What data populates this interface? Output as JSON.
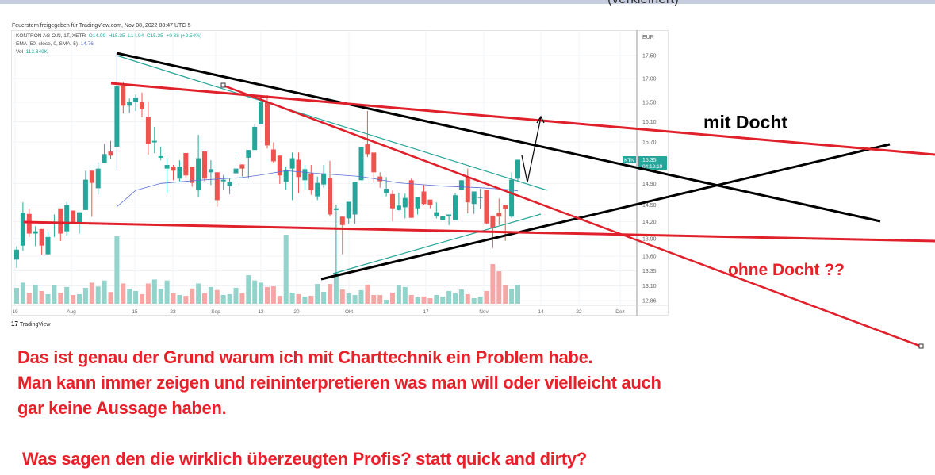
{
  "page": {
    "cutoff_caption": "(verkleinert)",
    "shared_line": "Feuerstern freigegeben für TradingView.com, Nov 08, 2022 08:47 UTC-5",
    "legend": {
      "symbol": "KONTRON AG O.N, 1T, XETR",
      "open": "O14.99",
      "high": "H15.35",
      "low": "L14.94",
      "close": "C15.35",
      "change": "+0.38 (+2.54%)",
      "ema_label": "EMA (50, close, 0, SMA, 5)",
      "ema_value": "14.76",
      "vol_label": "Vol",
      "vol_value": "113.849K"
    },
    "brand": "TradingView",
    "price_tag": {
      "ticker": "KTN",
      "price": "15.35",
      "countdown": "04:12:19"
    },
    "annotations": {
      "mit_docht": "mit Docht",
      "ohne_docht": "ohne Docht ??",
      "line1": "Das ist genau der Grund warum ich mit Charttechnik ein Problem habe.",
      "line2": "Man kann immer zeigen und reininterpretieren was man will oder vielleicht auch",
      "line3": "gar keine Aussage haben.",
      "line4": "Was sagen den die wirklich überzeugten Profis? statt quick and dirty?"
    },
    "colors": {
      "up": "#26a69a",
      "down": "#ef5350",
      "vol_up": "#92d3cb",
      "vol_down": "#f5a6a5",
      "ema": "#5a6fd8",
      "annotation_red": "#e8202a",
      "trendline_black": "#000000",
      "trendline_teal": "#26a69a"
    }
  },
  "chart_data": {
    "type": "candlestick",
    "yscale": "log",
    "currency": "EUR",
    "ylim": [
      12.86,
      17.5
    ],
    "grid": true,
    "y_ticks": [
      "17.50",
      "17.00",
      "16.50",
      "16.10",
      "15.70",
      "14.90",
      "14.50",
      "14.20",
      "13.90",
      "13.60",
      "13.35",
      "13.10",
      "12.86"
    ],
    "x_ticks": [
      "19",
      "Aug",
      "15",
      "23",
      "Sep",
      "12",
      "20",
      "Okt",
      "17",
      "Nov",
      "14",
      "22",
      "Dez"
    ],
    "candles_ohlc": [
      [
        13.54,
        13.77,
        13.4,
        13.71
      ],
      [
        13.78,
        14.55,
        13.69,
        14.36
      ],
      [
        14.34,
        14.44,
        13.93,
        13.99
      ],
      [
        13.99,
        14.12,
        13.77,
        14.03
      ],
      [
        14.07,
        14.07,
        13.62,
        13.78
      ],
      [
        13.63,
        14.02,
        13.63,
        13.93
      ],
      [
        14.16,
        14.33,
        13.93,
        14.19
      ],
      [
        14.44,
        14.44,
        13.86,
        13.99
      ],
      [
        14.03,
        14.56,
        13.95,
        14.5
      ],
      [
        14.4,
        14.4,
        14.16,
        14.16
      ],
      [
        14.19,
        14.37,
        13.99,
        14.37
      ],
      [
        14.41,
        15.14,
        14.41,
        14.97
      ],
      [
        15.14,
        15.14,
        14.29,
        14.91
      ],
      [
        14.81,
        15.3,
        14.69,
        15.18
      ],
      [
        15.29,
        15.66,
        15.29,
        15.46
      ],
      [
        15.51,
        15.72,
        15.37,
        15.43
      ],
      [
        15.6,
        17.55,
        15.14,
        16.85
      ],
      [
        16.85,
        16.93,
        16.27,
        16.43
      ],
      [
        16.43,
        16.58,
        16.28,
        16.5
      ],
      [
        16.5,
        16.66,
        16.32,
        16.6
      ],
      [
        16.5,
        16.7,
        16.19,
        16.36
      ],
      [
        16.19,
        16.52,
        15.45,
        15.66
      ],
      [
        15.69,
        16.0,
        15.48,
        15.72
      ],
      [
        15.39,
        15.6,
        15.34,
        15.42
      ],
      [
        15.18,
        15.39,
        14.72,
        15.25
      ],
      [
        15.22,
        15.25,
        14.96,
        15.14
      ],
      [
        14.99,
        15.34,
        14.94,
        15.22
      ],
      [
        15.48,
        15.48,
        14.99,
        15.05
      ],
      [
        15.22,
        15.22,
        14.84,
        14.91
      ],
      [
        14.77,
        15.84,
        14.65,
        15.38
      ],
      [
        15.51,
        15.51,
        14.94,
        14.99
      ],
      [
        15.11,
        15.34,
        14.87,
        15.17
      ],
      [
        15.11,
        15.11,
        14.47,
        14.59
      ],
      [
        14.94,
        15.06,
        14.77,
        14.97
      ],
      [
        14.85,
        15.0,
        14.7,
        14.93
      ],
      [
        15.09,
        15.4,
        14.88,
        15.18
      ],
      [
        15.26,
        15.26,
        15.03,
        15.18
      ],
      [
        15.39,
        15.54,
        14.99,
        15.54
      ],
      [
        15.54,
        16.04,
        15.54,
        16.0
      ],
      [
        16.05,
        16.65,
        16.05,
        16.5
      ],
      [
        16.5,
        16.65,
        15.57,
        15.63
      ],
      [
        15.55,
        15.69,
        15.29,
        15.32
      ],
      [
        15.43,
        15.43,
        14.89,
        15.05
      ],
      [
        14.93,
        15.22,
        14.78,
        15.15
      ],
      [
        15.18,
        15.49,
        14.59,
        15.38
      ],
      [
        15.35,
        15.49,
        14.72,
        15.02
      ],
      [
        14.96,
        15.25,
        14.78,
        15.17
      ],
      [
        15.09,
        15.25,
        14.69,
        14.77
      ],
      [
        14.66,
        15.03,
        14.59,
        14.91
      ],
      [
        14.88,
        15.25,
        14.82,
        15.09
      ],
      [
        15.01,
        15.33,
        14.3,
        14.33
      ],
      [
        14.41,
        14.51,
        13.27,
        14.44
      ],
      [
        14.29,
        14.29,
        13.63,
        14.14
      ],
      [
        14.26,
        14.56,
        14.16,
        14.56
      ],
      [
        14.33,
        14.93,
        14.16,
        14.93
      ],
      [
        14.96,
        15.6,
        14.96,
        15.6
      ],
      [
        15.65,
        16.32,
        15.4,
        15.46
      ],
      [
        15.49,
        15.49,
        14.91,
        15.11
      ],
      [
        15.03,
        15.11,
        14.82,
        14.94
      ],
      [
        14.72,
        15.02,
        14.66,
        14.8
      ],
      [
        14.7,
        14.77,
        14.21,
        14.44
      ],
      [
        14.41,
        14.72,
        14.4,
        14.49
      ],
      [
        14.46,
        14.71,
        14.26,
        14.63
      ],
      [
        14.96,
        14.99,
        14.27,
        14.27
      ],
      [
        14.44,
        14.65,
        14.33,
        14.65
      ],
      [
        14.75,
        14.87,
        14.5,
        14.52
      ],
      [
        14.6,
        14.6,
        14.44,
        14.5
      ],
      [
        14.3,
        14.55,
        14.26,
        14.37
      ],
      [
        14.23,
        14.3,
        14.22,
        14.3
      ],
      [
        14.3,
        14.33,
        14.14,
        14.33
      ],
      [
        14.23,
        14.72,
        14.23,
        14.68
      ],
      [
        14.78,
        14.96,
        14.78,
        14.96
      ],
      [
        15.02,
        15.18,
        14.35,
        14.55
      ],
      [
        14.52,
        14.75,
        14.34,
        14.75
      ],
      [
        14.63,
        14.8,
        14.43,
        14.65
      ],
      [
        14.78,
        14.78,
        14.16,
        14.17
      ],
      [
        14.31,
        14.31,
        13.74,
        14.08
      ],
      [
        14.36,
        14.62,
        14.14,
        14.29
      ],
      [
        14.5,
        14.5,
        13.86,
        14.43
      ],
      [
        14.29,
        15.11,
        14.27,
        14.97
      ],
      [
        14.99,
        15.35,
        14.94,
        15.35
      ]
    ],
    "volume_k": [
      95,
      126,
      66,
      114,
      76,
      57,
      109,
      66,
      100,
      52,
      57,
      95,
      126,
      103,
      139,
      70,
      403,
      121,
      89,
      76,
      57,
      121,
      145,
      89,
      139,
      63,
      52,
      47,
      91,
      121,
      63,
      100,
      82,
      52,
      57,
      95,
      63,
      170,
      139,
      126,
      100,
      104,
      47,
      412,
      66,
      57,
      43,
      47,
      118,
      71,
      118,
      185,
      85,
      62,
      52,
      81,
      114,
      52,
      52,
      24,
      66,
      109,
      100,
      52,
      38,
      43,
      33,
      52,
      43,
      76,
      62,
      85,
      57,
      33,
      43,
      76,
      237,
      194,
      109,
      90,
      113.849
    ],
    "ema_points": [
      [
        17,
        14.47
      ],
      [
        20,
        14.77
      ],
      [
        24,
        14.9
      ],
      [
        30,
        14.96
      ],
      [
        37,
        15.01
      ],
      [
        40,
        15.06
      ],
      [
        44,
        15.14
      ],
      [
        49,
        15.09
      ],
      [
        56,
        15.03
      ],
      [
        62,
        14.91
      ],
      [
        69,
        14.85
      ],
      [
        75,
        14.82
      ],
      [
        80,
        14.78
      ],
      [
        81,
        14.76
      ]
    ]
  }
}
